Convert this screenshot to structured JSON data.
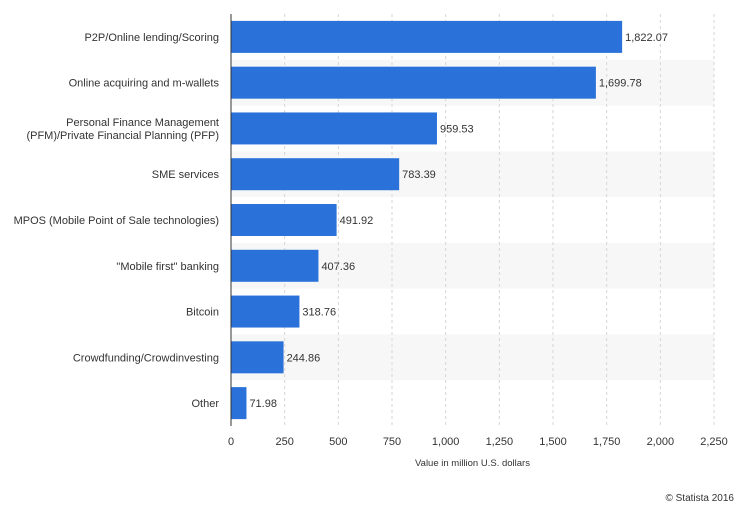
{
  "chart_data": {
    "type": "bar",
    "orientation": "horizontal",
    "categories": [
      [
        "P2P/Online lending/Scoring"
      ],
      [
        "Online acquiring and m-wallets"
      ],
      [
        "Personal Finance Management",
        "(PFM)/Private Financial Planning (PFP)"
      ],
      [
        "SME services"
      ],
      [
        "MPOS (Mobile Point of Sale technologies)"
      ],
      [
        "\"Mobile first\" banking"
      ],
      [
        "Bitcoin"
      ],
      [
        "Crowdfunding/Crowdinvesting"
      ],
      [
        "Other"
      ]
    ],
    "values": [
      1822.07,
      1699.78,
      959.53,
      783.39,
      491.92,
      407.36,
      318.76,
      244.86,
      71.98
    ],
    "value_labels": [
      "1,822.07",
      "1,699.78",
      "959.53",
      "783.39",
      "491.92",
      "407.36",
      "318.76",
      "244.86",
      "71.98"
    ],
    "xlabel": "Value in million U.S. dollars",
    "ylabel": "",
    "xlim": [
      0,
      2250
    ],
    "xticks": [
      0,
      250,
      500,
      750,
      1000,
      1250,
      1500,
      1750,
      2000,
      2250
    ],
    "xtick_labels": [
      "0",
      "250",
      "500",
      "750",
      "1,000",
      "1,250",
      "1,500",
      "1,750",
      "2,000",
      "2,250"
    ],
    "grid": "vertical dashed",
    "bar_color": "#2a72d9",
    "alt_row_color": "#f7f7f7"
  },
  "credit": "© Statista 2016"
}
